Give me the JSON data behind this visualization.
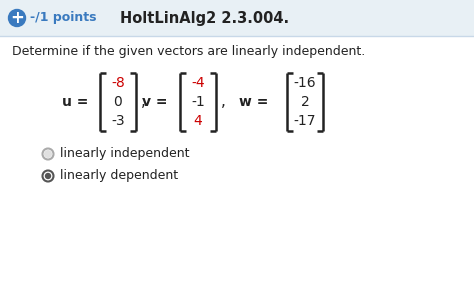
{
  "header_bg": "#e8f0f5",
  "body_bg": "#ffffff",
  "header_text_color": "#3a7abf",
  "header_bold_text": "-/1 points",
  "header_title": "HoltLinAlg2 2.3.004.",
  "question": "Determine if the given vectors are linearly independent.",
  "u_values": [
    "-8",
    "0",
    "-3"
  ],
  "v_values": [
    "-4",
    "-1",
    "4"
  ],
  "w_values": [
    "-16",
    "2",
    "-17"
  ],
  "u_colors": [
    "#cc0000",
    "#222222",
    "#222222"
  ],
  "v_colors": [
    "#cc0000",
    "#222222",
    "#cc0000"
  ],
  "w_colors": [
    "#222222",
    "#222222",
    "#222222"
  ],
  "option1": "linearly independent",
  "option2": "linearly dependent",
  "option1_selected": false,
  "option2_selected": true,
  "plus_icon_color": "#3a7abf",
  "text_color": "#222222",
  "radio_unsel_color": "#aaaaaa",
  "radio_sel_color": "#555555",
  "header_separator_color": "#c8d8e8",
  "bracket_color": "#222222"
}
